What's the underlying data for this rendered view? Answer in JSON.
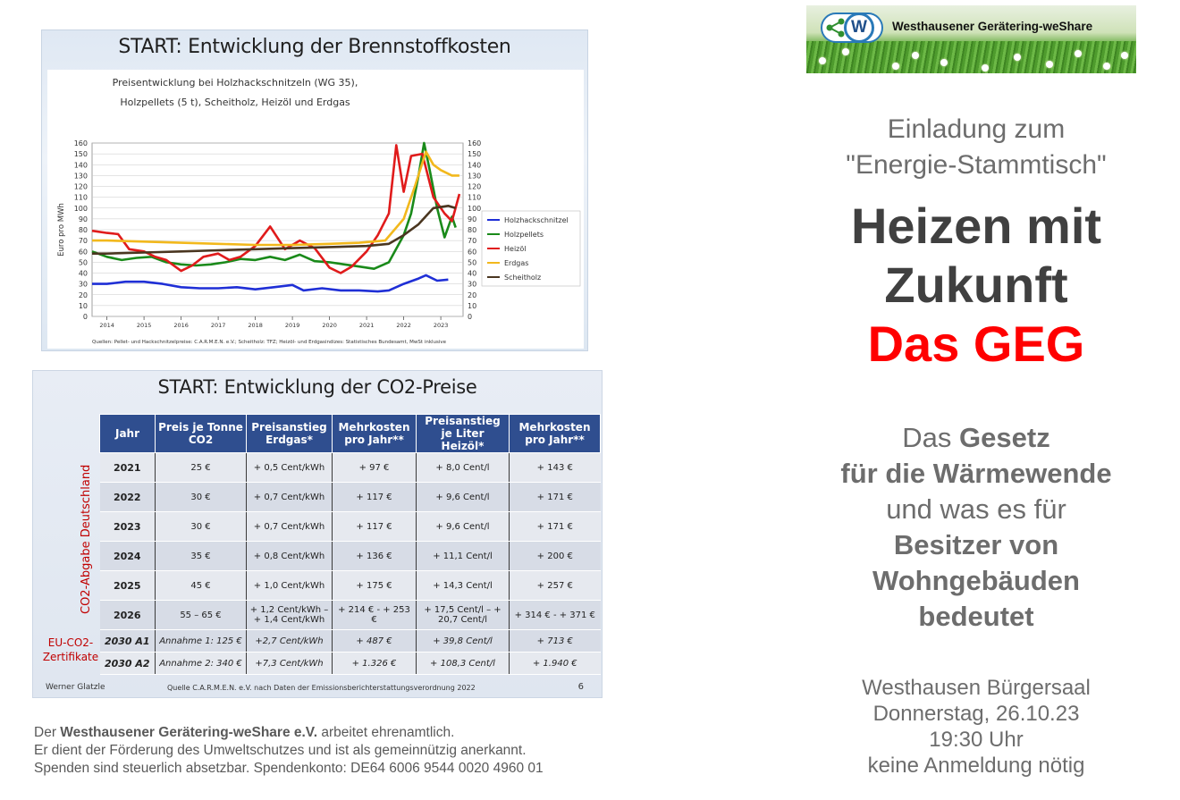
{
  "fuel_slide": {
    "title": "START:  Entwicklung der Brennstoffkosten",
    "chart_title_line1": "Preisentwicklung bei Holzhackschnitzeln (WG 35),",
    "chart_title_line2": "Holzpellets (5 t), Scheitholz, Heizöl und Erdgas",
    "source": "Quellen: Pellet- und Hackschnitzelpreise: C.A.R.M.E.N. e.V.; Scheitholz: TFZ; Heizöl- und Erdgasindizes: Statistisches Bundesamt, MwSt inklusive"
  },
  "chart_data": {
    "type": "line",
    "ylabel": "Euro pro MWh",
    "ylim": [
      0,
      160
    ],
    "yticks": [
      0,
      10,
      20,
      30,
      40,
      50,
      60,
      70,
      80,
      90,
      100,
      110,
      120,
      130,
      140,
      150,
      160
    ],
    "x_labels": [
      "2014",
      "2015",
      "2016",
      "2017",
      "2018",
      "2019",
      "2020",
      "2021",
      "2022",
      "2023"
    ],
    "xlim": [
      2013.6,
      2023.6
    ],
    "legend_position": "right",
    "series": [
      {
        "name": "Holzhackschnitzel",
        "color": "#1f2fd6",
        "points": [
          [
            2013.6,
            30
          ],
          [
            2014,
            30
          ],
          [
            2014.5,
            32
          ],
          [
            2015,
            32
          ],
          [
            2015.5,
            30
          ],
          [
            2016,
            27
          ],
          [
            2016.5,
            26
          ],
          [
            2017,
            26
          ],
          [
            2017.5,
            27
          ],
          [
            2018,
            25
          ],
          [
            2018.5,
            27
          ],
          [
            2019,
            29
          ],
          [
            2019.3,
            24
          ],
          [
            2019.8,
            26
          ],
          [
            2020.3,
            24
          ],
          [
            2020.8,
            24
          ],
          [
            2021.3,
            23
          ],
          [
            2021.6,
            24
          ],
          [
            2022,
            30
          ],
          [
            2022.4,
            35
          ],
          [
            2022.6,
            38
          ],
          [
            2022.9,
            33
          ],
          [
            2023.2,
            34
          ]
        ]
      },
      {
        "name": "Holzpellets",
        "color": "#1a8a1a",
        "points": [
          [
            2013.6,
            60
          ],
          [
            2014,
            55
          ],
          [
            2014.4,
            52
          ],
          [
            2014.8,
            54
          ],
          [
            2015.2,
            55
          ],
          [
            2015.6,
            50
          ],
          [
            2016,
            48
          ],
          [
            2016.4,
            47
          ],
          [
            2016.8,
            48
          ],
          [
            2017.2,
            50
          ],
          [
            2017.6,
            53
          ],
          [
            2018,
            52
          ],
          [
            2018.4,
            55
          ],
          [
            2018.8,
            52
          ],
          [
            2019.2,
            57
          ],
          [
            2019.6,
            51
          ],
          [
            2020,
            50
          ],
          [
            2020.4,
            48
          ],
          [
            2020.8,
            46
          ],
          [
            2021.2,
            44
          ],
          [
            2021.6,
            50
          ],
          [
            2022,
            75
          ],
          [
            2022.2,
            95
          ],
          [
            2022.4,
            130
          ],
          [
            2022.55,
            160
          ],
          [
            2022.7,
            135
          ],
          [
            2022.9,
            100
          ],
          [
            2023.1,
            73
          ],
          [
            2023.3,
            92
          ],
          [
            2023.4,
            82
          ]
        ]
      },
      {
        "name": "Heizöl",
        "color": "#e01b1b",
        "points": [
          [
            2013.6,
            79
          ],
          [
            2014,
            77
          ],
          [
            2014.3,
            76
          ],
          [
            2014.6,
            62
          ],
          [
            2015,
            60
          ],
          [
            2015.3,
            55
          ],
          [
            2015.6,
            52
          ],
          [
            2016,
            42
          ],
          [
            2016.3,
            47
          ],
          [
            2016.6,
            55
          ],
          [
            2017,
            58
          ],
          [
            2017.3,
            52
          ],
          [
            2017.6,
            55
          ],
          [
            2018,
            65
          ],
          [
            2018.4,
            83
          ],
          [
            2018.8,
            62
          ],
          [
            2019.2,
            70
          ],
          [
            2019.6,
            63
          ],
          [
            2020,
            45
          ],
          [
            2020.3,
            40
          ],
          [
            2020.6,
            46
          ],
          [
            2021,
            60
          ],
          [
            2021.3,
            75
          ],
          [
            2021.6,
            95
          ],
          [
            2021.8,
            158
          ],
          [
            2022,
            115
          ],
          [
            2022.2,
            148
          ],
          [
            2022.5,
            150
          ],
          [
            2022.8,
            110
          ],
          [
            2023.1,
            95
          ],
          [
            2023.3,
            88
          ],
          [
            2023.5,
            113
          ]
        ]
      },
      {
        "name": "Erdgas",
        "color": "#f2b81c",
        "points": [
          [
            2013.6,
            70
          ],
          [
            2014,
            70
          ],
          [
            2015,
            69
          ],
          [
            2016,
            68
          ],
          [
            2017,
            67
          ],
          [
            2018,
            66
          ],
          [
            2019,
            66
          ],
          [
            2020,
            67
          ],
          [
            2020.8,
            68
          ],
          [
            2021.5,
            70
          ],
          [
            2022,
            90
          ],
          [
            2022.3,
            120
          ],
          [
            2022.6,
            152
          ],
          [
            2022.8,
            140
          ],
          [
            2023,
            135
          ],
          [
            2023.3,
            130
          ],
          [
            2023.5,
            130
          ]
        ]
      },
      {
        "name": "Scheitholz",
        "color": "#4a3620",
        "points": [
          [
            2013.6,
            58
          ],
          [
            2014,
            58
          ],
          [
            2015,
            59
          ],
          [
            2016,
            60
          ],
          [
            2017,
            61
          ],
          [
            2018,
            62
          ],
          [
            2019,
            63
          ],
          [
            2020,
            64
          ],
          [
            2021,
            65
          ],
          [
            2021.6,
            67
          ],
          [
            2022,
            75
          ],
          [
            2022.4,
            85
          ],
          [
            2022.8,
            100
          ],
          [
            2023.2,
            102
          ],
          [
            2023.4,
            100
          ]
        ]
      }
    ]
  },
  "co2_slide": {
    "title": "START: Entwicklung der CO2-Preise",
    "vertical_label": "CO2-Abgabe Deutschland",
    "eu_label_line1": "EU-CO2-",
    "eu_label_line2": "Zertifikate",
    "headers": [
      "Jahr",
      "Preis je Tonne CO2",
      "Preisanstieg Erdgas*",
      "Mehrkosten pro Jahr**",
      "Preisanstieg je Liter Heizöl*",
      "Mehrkosten pro Jahr**"
    ],
    "rows": [
      [
        "2021",
        "25 €",
        "+ 0,5 Cent/kWh",
        "+ 97 €",
        "+ 8,0 Cent/l",
        "+ 143 €"
      ],
      [
        "2022",
        "30 €",
        "+ 0,7 Cent/kWh",
        "+ 117 €",
        "+ 9,6 Cent/l",
        "+ 171 €"
      ],
      [
        "2023",
        "30 €",
        "+ 0,7 Cent/kWh",
        "+ 117 €",
        "+ 9,6 Cent/l",
        "+ 171 €"
      ],
      [
        "2024",
        "35 €",
        "+ 0,8 Cent/kWh",
        "+ 136 €",
        "+ 11,1 Cent/l",
        "+ 200 €"
      ],
      [
        "2025",
        "45 €",
        "+ 1,0 Cent/kWh",
        "+ 175 €",
        "+ 14,3 Cent/l",
        "+ 257 €"
      ],
      [
        "2026",
        "55 – 65 €",
        "+ 1,2 Cent/kWh – + 1,4 Cent/kWh",
        "+ 214 € - + 253 €",
        "+ 17,5 Cent/l – + 20,7 Cent/l",
        "+ 314 € - + 371 €"
      ]
    ],
    "eu_rows": [
      [
        "2030 A1",
        "Annahme 1: 125 €",
        "+2,7 Cent/kWh",
        "+ 487 €",
        "+ 39,8 Cent/l",
        "+ 713 €"
      ],
      [
        "2030 A2",
        "Annahme 2: 340 €",
        "+7,3 Cent/kWh",
        "+ 1.326 €",
        "+ 108,3 Cent/l",
        "+ 1.940 €"
      ]
    ],
    "author": "Werner Glatzle",
    "source": "Quelle C.A.R.M.E.N. e.V. nach Daten der Emissionsberichterstattungsverordnung 2022",
    "page": "6"
  },
  "footer": {
    "line1_pre": "Der ",
    "line1_bold": "Westhausener Gerätering-weShare e.V.",
    "line1_post": " arbeitet ehrenamtlich.",
    "line2": "Er dient der Förderung des Umweltschutzes und ist als gemeinnützig anerkannt.",
    "line3": "Spenden sind steuerlich absetzbar. Spendenkonto: DE64 6006 9544 0020 4960 01"
  },
  "logo": {
    "letter": "W",
    "name": "Westhausener Gerätering-weShare",
    "icon": "share-icon"
  },
  "invite": {
    "line1": "Einladung zum",
    "line2": "\"Energie-Stammtisch\"",
    "headline1": "Heizen mit",
    "headline2": "Zukunft",
    "headline3": "Das GEG",
    "headline3_color": "#ff0000"
  },
  "subtitle": {
    "l1_pre": "Das ",
    "l1_bold": "Gesetz",
    "l2": "für die Wärmewende",
    "l3": "und was es für",
    "l4": "Besitzer von",
    "l5": "Wohngebäuden",
    "l6": "bedeutet"
  },
  "event": {
    "place": "Westhausen Bürgersaal",
    "date": "Donnerstag, 26.10.23",
    "time": "19:30 Uhr",
    "note": "keine Anmeldung nötig"
  }
}
